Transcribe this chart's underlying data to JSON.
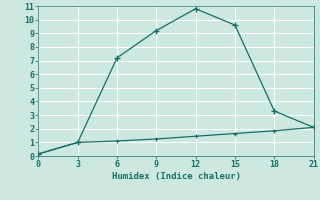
{
  "xlabel": "Humidex (Indice chaleur)",
  "bg_color": "#cce8e0",
  "grid_color": "#b8d8d0",
  "line_color": "#1a6e6a",
  "line1_x": [
    0,
    3,
    6,
    9,
    12,
    15,
    18,
    21
  ],
  "line1_y": [
    0.15,
    1.0,
    7.2,
    9.2,
    10.8,
    9.6,
    3.3,
    2.1
  ],
  "line2_x": [
    0,
    3,
    6,
    9,
    12,
    15,
    18,
    21
  ],
  "line2_y": [
    0.15,
    1.0,
    1.1,
    1.25,
    1.45,
    1.65,
    1.85,
    2.1
  ],
  "xlim": [
    0,
    21
  ],
  "ylim": [
    0,
    11
  ],
  "xticks": [
    0,
    3,
    6,
    9,
    12,
    15,
    18,
    21
  ],
  "yticks": [
    0,
    1,
    2,
    3,
    4,
    5,
    6,
    7,
    8,
    9,
    10,
    11
  ]
}
